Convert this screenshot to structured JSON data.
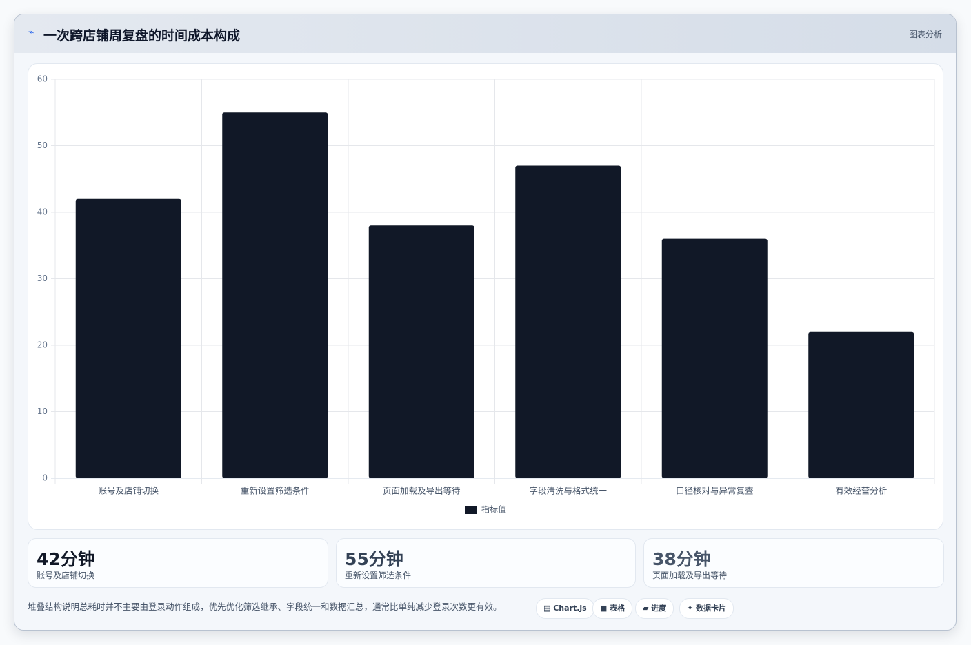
{
  "header": {
    "icon": "⌁",
    "title": "一次跨店铺周复盘的时间成本构成",
    "tag": "图表分析"
  },
  "chart_data": {
    "type": "bar",
    "categories": [
      "账号及店铺切换",
      "重新设置筛选条件",
      "页面加载及导出等待",
      "字段清洗与格式统一",
      "口径核对与异常复查",
      "有效经营分析"
    ],
    "series": [
      {
        "name": "指标值",
        "color": "#111827",
        "values": [
          42,
          55,
          38,
          47,
          36,
          22
        ]
      }
    ],
    "ylim": [
      0,
      60
    ],
    "yticks": [
      0,
      10,
      20,
      30,
      40,
      50,
      60
    ],
    "grid": true,
    "legend": "bottom"
  },
  "cards": [
    {
      "value": "42分钟",
      "label": "账号及店铺切换"
    },
    {
      "value": "55分钟",
      "label": "重新设置筛选条件"
    },
    {
      "value": "38分钟",
      "label": "页面加载及导出等待"
    }
  ],
  "footer": {
    "note": "堆叠结构说明总耗时并不主要由登录动作组成，优先优化筛选继承、字段统一和数据汇总，通常比单纯减少登录次数更有效。",
    "chips": [
      "▤ Chart.js",
      "■ 表格",
      "▰ 进度",
      "✦ 数据卡片"
    ]
  }
}
